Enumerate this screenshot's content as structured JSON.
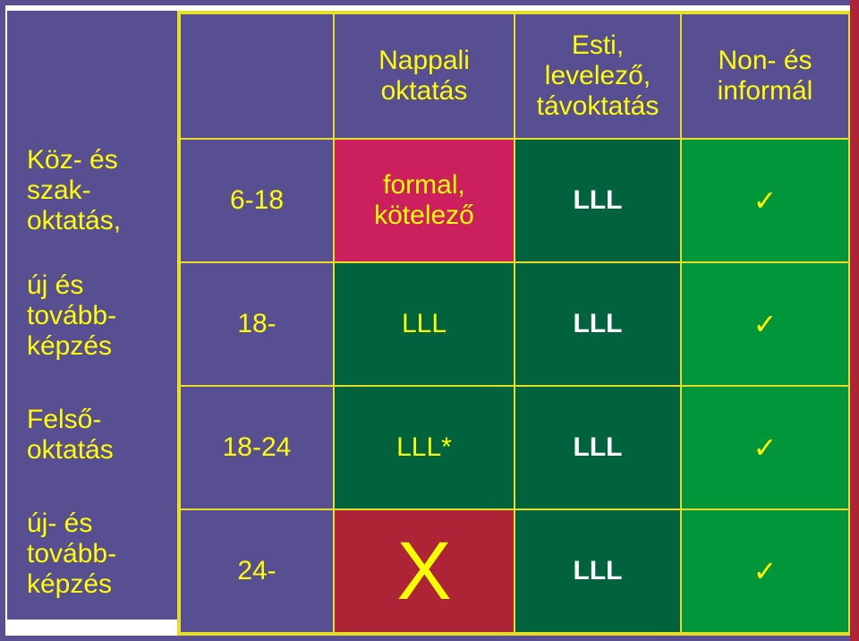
{
  "left": {
    "kozepfok": "Köz- és\nszak-\noktatás,",
    "uj1": "új és\ntovább-\nképzés",
    "felso": "Felső-\noktatás",
    "uj2": "új- és\ntovább-\nképzés"
  },
  "header": {
    "nappali": "Nappali\noktatás",
    "esti": "Esti,\nlevelező,\ntávoktatás",
    "non": "Non- és\ninformál"
  },
  "rows": [
    {
      "age": "6-18",
      "nappali": "formal,\nkötelező",
      "esti": "LLL",
      "non": "✓"
    },
    {
      "age": "18-",
      "nappali": "LLL",
      "esti": "LLL",
      "non": "✓"
    },
    {
      "age": "18-24",
      "nappali": "LLL*",
      "esti": "LLL",
      "non": "✓"
    },
    {
      "age": "24-",
      "nappali": "X",
      "esti": "LLL",
      "non": "✓"
    }
  ],
  "colors": {
    "purple": "#574f91",
    "dark_green": "#00633e",
    "bright_green": "#009639",
    "magenta": "#cc1f5e",
    "crimson": "#ad2437",
    "text_yellow": "#ffff00"
  }
}
